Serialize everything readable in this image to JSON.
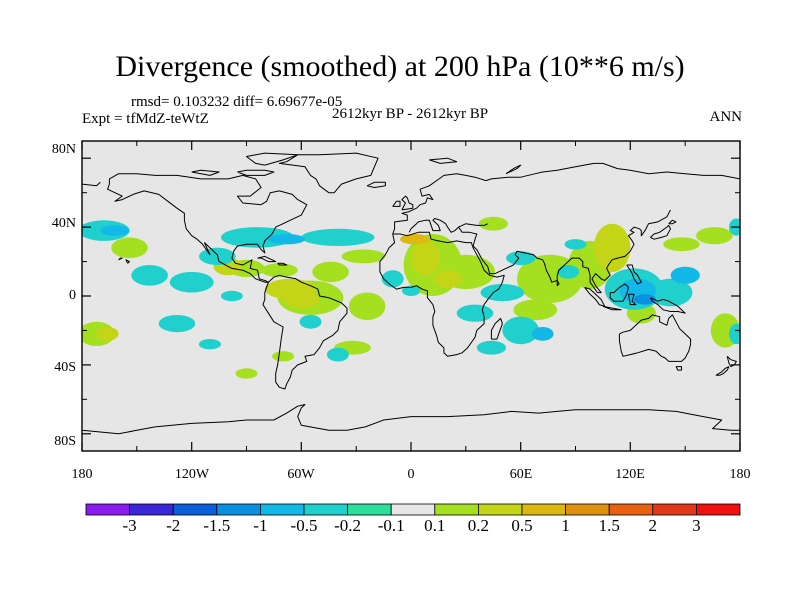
{
  "title": "Divergence (smoothed) at 200 hPa (10**6 m/s)",
  "stats_text": "rmsd= 0.103232  diff= 6.69677e-05",
  "experiment_text": "Expt = tfMdZ-teWtZ",
  "period_text": "2612kyr BP - 2612kyr BP",
  "season_text": "ANN",
  "y_axis_labels": [
    "80N",
    "40N",
    "0",
    "40S",
    "80S"
  ],
  "x_axis_labels": [
    "180",
    "120W",
    "60W",
    "0",
    "60E",
    "120E",
    "180"
  ],
  "colorbar": {
    "labels": [
      "-3",
      "-2",
      "-1.5",
      "-1",
      "-0.5",
      "-0.2",
      "-0.1",
      "0.1",
      "0.2",
      "0.5",
      "1",
      "1.5",
      "2",
      "3"
    ],
    "colors": [
      "#8a1cf0",
      "#3a28d8",
      "#0a5ed8",
      "#0a90e0",
      "#12b8e8",
      "#20d0cc",
      "#2cde98",
      "#e6e6e6",
      "#a4e020",
      "#c4d416",
      "#dcb810",
      "#e09010",
      "#e86010",
      "#e03818",
      "#f01010"
    ]
  },
  "chart_data": {
    "type": "heatmap",
    "title": "Divergence (smoothed) at 200 hPa (10**6 m/s)",
    "variable": "divergence",
    "units": "10**6 m/s",
    "level_hPa": 200,
    "experiment": "tfMdZ-teWtZ",
    "period": "2612kyr BP - 2612kyr BP",
    "season": "ANN",
    "rmsd": 0.103232,
    "diff": 6.69677e-05,
    "xlim": [
      -180,
      180
    ],
    "ylim": [
      -90,
      90
    ],
    "contour_levels": [
      -3,
      -2,
      -1.5,
      -1,
      -0.5,
      -0.2,
      -0.1,
      0.1,
      0.2,
      0.5,
      1,
      1.5,
      2,
      3
    ],
    "background_color": "#e6e6e6",
    "coast_color": "#000000",
    "positive_regions": [
      {
        "lon": -100,
        "lat": 17,
        "rx": 8,
        "ry": 5,
        "level": 0.5
      },
      {
        "lon": -90,
        "lat": 16,
        "rx": 10,
        "ry": 5,
        "level": 0.2
      },
      {
        "lon": -72,
        "lat": 15,
        "rx": 10,
        "ry": 4,
        "level": 0.2
      },
      {
        "lon": -66,
        "lat": 4,
        "rx": 14,
        "ry": 6,
        "level": 0.5
      },
      {
        "lon": -55,
        "lat": -1,
        "rx": 18,
        "ry": 10,
        "level": 0.2
      },
      {
        "lon": -60,
        "lat": -2,
        "rx": 10,
        "ry": 5,
        "level": 0.5
      },
      {
        "lon": -44,
        "lat": 14,
        "rx": 10,
        "ry": 6,
        "level": 0.2
      },
      {
        "lon": -26,
        "lat": 23,
        "rx": 12,
        "ry": 4,
        "level": 0.2
      },
      {
        "lon": -24,
        "lat": -6,
        "rx": 10,
        "ry": 8,
        "level": 0.2
      },
      {
        "lon": -32,
        "lat": -30,
        "rx": 10,
        "ry": 4,
        "level": 0.2
      },
      {
        "lon": -70,
        "lat": -35,
        "rx": 6,
        "ry": 3,
        "level": 0.2
      },
      {
        "lon": -90,
        "lat": -45,
        "rx": 6,
        "ry": 3,
        "level": 0.2
      },
      {
        "lon": 12,
        "lat": 18,
        "rx": 16,
        "ry": 18,
        "level": 0.2
      },
      {
        "lon": 8,
        "lat": 22,
        "rx": 8,
        "ry": 10,
        "level": 0.5
      },
      {
        "lon": 2,
        "lat": 33,
        "rx": 8,
        "ry": 3,
        "level": 1
      },
      {
        "lon": 30,
        "lat": 14,
        "rx": 16,
        "ry": 10,
        "level": 0.2
      },
      {
        "lon": 20,
        "lat": 10,
        "rx": 8,
        "ry": 5,
        "level": 0.5
      },
      {
        "lon": 45,
        "lat": 42,
        "rx": 8,
        "ry": 4,
        "level": 0.2
      },
      {
        "lon": 76,
        "lat": 10,
        "rx": 18,
        "ry": 14,
        "level": 0.2
      },
      {
        "lon": 98,
        "lat": 18,
        "rx": 12,
        "ry": 14,
        "level": 0.2
      },
      {
        "lon": 110,
        "lat": 28,
        "rx": 10,
        "ry": 14,
        "level": 0.5
      },
      {
        "lon": 68,
        "lat": -8,
        "rx": 12,
        "ry": 6,
        "level": 0.2
      },
      {
        "lon": 126,
        "lat": -10,
        "rx": 8,
        "ry": 6,
        "level": 0.2
      },
      {
        "lon": 148,
        "lat": 30,
        "rx": 10,
        "ry": 4,
        "level": 0.2
      },
      {
        "lon": 166,
        "lat": 35,
        "rx": 10,
        "ry": 5,
        "level": 0.2
      },
      {
        "lon": -172,
        "lat": -22,
        "rx": 10,
        "ry": 7,
        "level": 0.2
      },
      {
        "lon": -166,
        "lat": -22,
        "rx": 6,
        "ry": 4,
        "level": 0.5
      },
      {
        "lon": -154,
        "lat": 28,
        "rx": 10,
        "ry": 6,
        "level": 0.2
      },
      {
        "lon": 172,
        "lat": -20,
        "rx": 8,
        "ry": 10,
        "level": 0.2
      }
    ],
    "negative_regions": [
      {
        "lon": -168,
        "lat": 38,
        "rx": 14,
        "ry": 6,
        "level": -0.2
      },
      {
        "lon": -162,
        "lat": 38,
        "rx": 8,
        "ry": 3,
        "level": -0.5
      },
      {
        "lon": -143,
        "lat": 12,
        "rx": 10,
        "ry": 6,
        "level": -0.2
      },
      {
        "lon": -120,
        "lat": 8,
        "rx": 12,
        "ry": 6,
        "level": -0.2
      },
      {
        "lon": -106,
        "lat": 23,
        "rx": 10,
        "ry": 5,
        "level": -0.2
      },
      {
        "lon": -84,
        "lat": 34,
        "rx": 20,
        "ry": 6,
        "level": -0.2
      },
      {
        "lon": -68,
        "lat": 33,
        "rx": 10,
        "ry": 3,
        "level": -0.5
      },
      {
        "lon": -40,
        "lat": 34,
        "rx": 20,
        "ry": 5,
        "level": -0.2
      },
      {
        "lon": -98,
        "lat": 0,
        "rx": 6,
        "ry": 3,
        "level": -0.2
      },
      {
        "lon": -128,
        "lat": -16,
        "rx": 10,
        "ry": 5,
        "level": -0.2
      },
      {
        "lon": -110,
        "lat": -28,
        "rx": 6,
        "ry": 3,
        "level": -0.2
      },
      {
        "lon": -40,
        "lat": -34,
        "rx": 6,
        "ry": 4,
        "level": -0.2
      },
      {
        "lon": -55,
        "lat": -15,
        "rx": 6,
        "ry": 4,
        "level": -0.2
      },
      {
        "lon": -10,
        "lat": 10,
        "rx": 6,
        "ry": 5,
        "level": -0.2
      },
      {
        "lon": 0,
        "lat": 3,
        "rx": 5,
        "ry": 3,
        "level": -0.2
      },
      {
        "lon": 60,
        "lat": 22,
        "rx": 8,
        "ry": 4,
        "level": -0.2
      },
      {
        "lon": 50,
        "lat": 2,
        "rx": 12,
        "ry": 5,
        "level": -0.2
      },
      {
        "lon": 35,
        "lat": -10,
        "rx": 10,
        "ry": 5,
        "level": -0.2
      },
      {
        "lon": 60,
        "lat": -20,
        "rx": 10,
        "ry": 8,
        "level": -0.2
      },
      {
        "lon": 72,
        "lat": -22,
        "rx": 6,
        "ry": 4,
        "level": -0.5
      },
      {
        "lon": 44,
        "lat": -30,
        "rx": 8,
        "ry": 4,
        "level": -0.2
      },
      {
        "lon": 90,
        "lat": 30,
        "rx": 6,
        "ry": 3,
        "level": -0.2
      },
      {
        "lon": 122,
        "lat": 4,
        "rx": 16,
        "ry": 12,
        "level": -0.2
      },
      {
        "lon": 124,
        "lat": 3,
        "rx": 10,
        "ry": 7,
        "level": -0.5
      },
      {
        "lon": 128,
        "lat": -2,
        "rx": 6,
        "ry": 3,
        "level": -1
      },
      {
        "lon": 142,
        "lat": 2,
        "rx": 12,
        "ry": 8,
        "level": -0.2
      },
      {
        "lon": 150,
        "lat": 12,
        "rx": 8,
        "ry": 5,
        "level": -0.5
      },
      {
        "lon": 178,
        "lat": 40,
        "rx": 4,
        "ry": 5,
        "level": -0.2
      },
      {
        "lon": 178,
        "lat": -22,
        "rx": 4,
        "ry": 6,
        "level": -0.2
      },
      {
        "lon": 86,
        "lat": 14,
        "rx": 6,
        "ry": 4,
        "level": -0.2
      }
    ]
  }
}
